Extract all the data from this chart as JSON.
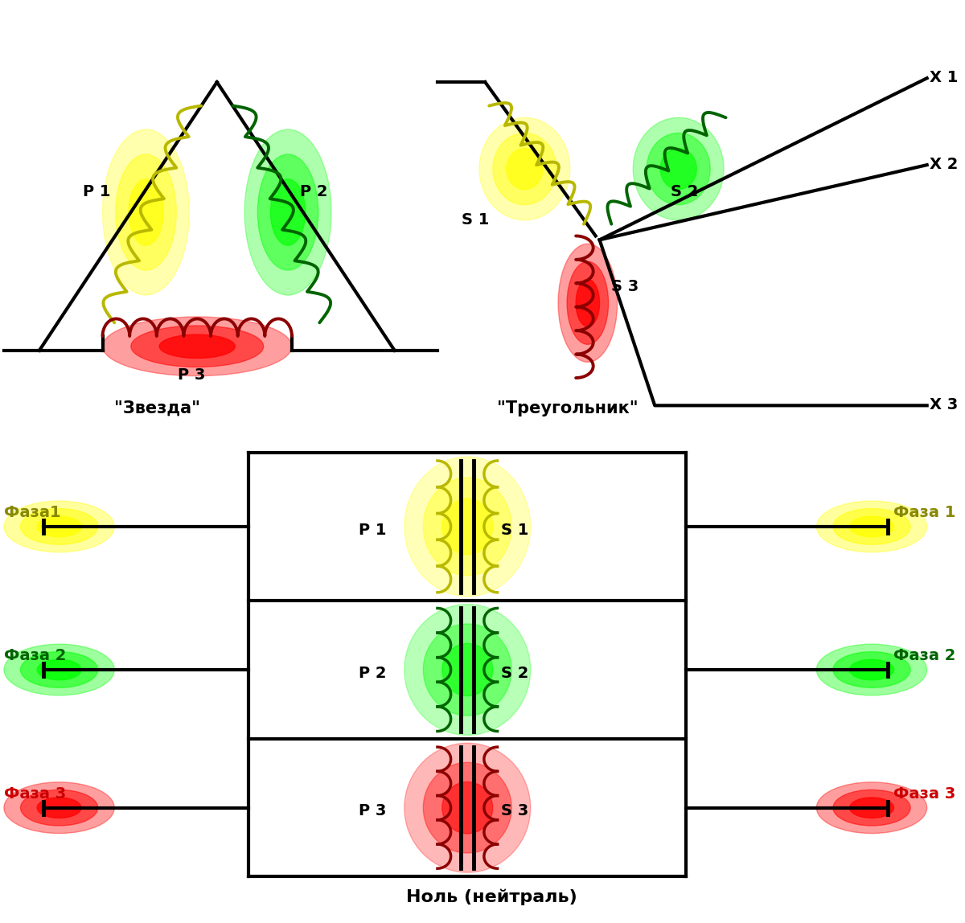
{
  "bg_color": "#ffffff",
  "line_color": "#000000",
  "line_width": 3,
  "star_label": "\"Звезда\"",
  "triangle_label": "\"Треугольник\"",
  "neutral_label": "Ноль (нейтраль)",
  "coil_colors": {
    "yellow": "#b8b800",
    "green": "#006400",
    "red": "#8b0000"
  },
  "glow_colors": {
    "yellow": "#ffff00",
    "green": "#00ff00",
    "red": "#ff0000"
  },
  "phase_colors": {
    "yellow": "#888800",
    "green": "#006400",
    "red": "#cc0000"
  },
  "labels": {
    "P1": "Р 1",
    "P2": "Р 2",
    "P3": "Р 3",
    "S1": "S 1",
    "S2": "S 2",
    "S3": "S 3",
    "X1": "Х 1",
    "X2": "Х 2",
    "X3": "Х 3",
    "faza1_left": "Фаза1",
    "faza2_left": "Фаза 2",
    "faza3_left": "Фаза 3",
    "faza1_right": "Фаза 1",
    "faza2_right": "Фаза 2",
    "faza3_right": "Фаза 3"
  }
}
